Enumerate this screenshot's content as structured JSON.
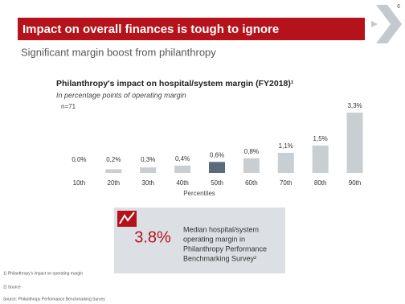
{
  "page_number": "6",
  "header": {
    "title": "Impact on overall finances is tough to ignore",
    "subtitle": "Significant margin boost from philanthropy"
  },
  "chart_data": {
    "type": "bar",
    "title": "Philanthropy's impact on hospital/system margin (FY2018)¹",
    "subtitle": "In percentage points of operating margin",
    "note": "n=71",
    "x_label": "Percentiles",
    "categories": [
      "10th",
      "20th",
      "30th",
      "40th",
      "50th",
      "60th",
      "70th",
      "80th",
      "90th"
    ],
    "values": [
      0.0,
      0.2,
      0.3,
      0.4,
      0.6,
      0.8,
      1.1,
      1.5,
      3.3
    ],
    "value_labels": [
      "0,0%",
      "0,2%",
      "0,3%",
      "0,4%",
      "0,6%",
      "0,8%",
      "1,1%",
      "1,5%",
      "3,3%"
    ],
    "colors": [
      "#c9ced3",
      "#c9ced3",
      "#c9ced3",
      "#c9ced3",
      "#5a6b7b",
      "#c9ced3",
      "#c9ced3",
      "#c9ced3",
      "#c9ced3"
    ]
  },
  "callout": {
    "value": "3.8%",
    "text": [
      "Median hospital/system",
      "operating margin in",
      "Philanthropy Performance",
      "Benchmarking Survey²"
    ]
  },
  "footnotes": [
    "1) Philanthropy's impact on operating margin",
    "2) Source"
  ],
  "source": "Source: Philanthropy Performance Benchmarking Survey"
}
